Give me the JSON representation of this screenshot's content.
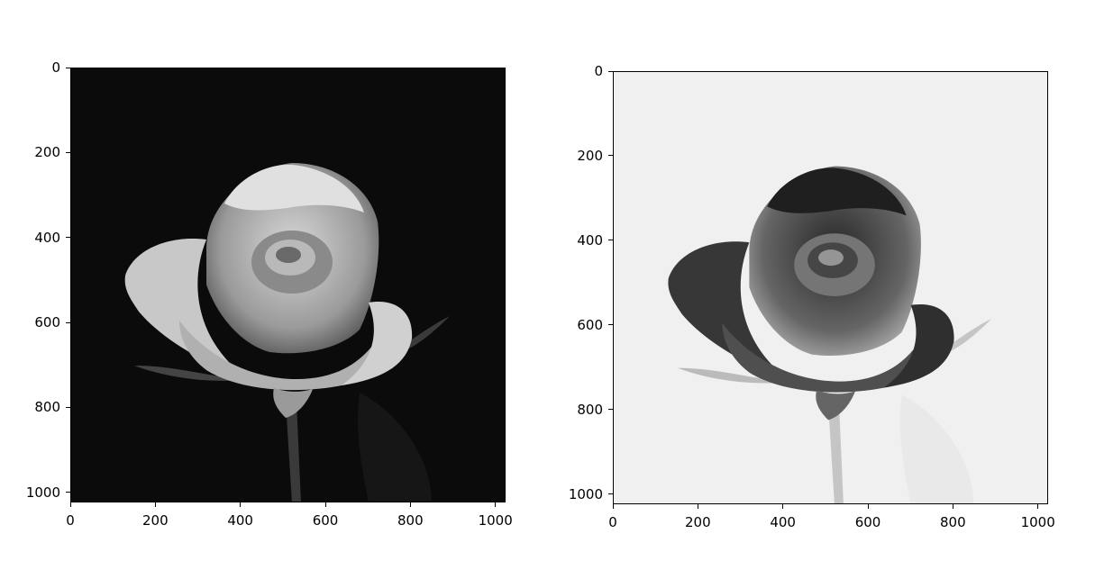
{
  "figure": {
    "panels": [
      {
        "id": "original",
        "image_subject": "grayscale rose on black background",
        "image_style": "grayscale",
        "background_color": "#0b0b0b",
        "petal_light": "#e6e6e6",
        "petal_mid": "#a9a9a9",
        "petal_dark": "#3a3a3a",
        "xticks": [
          "0",
          "200",
          "400",
          "600",
          "800",
          "1000"
        ],
        "yticks": [
          "0",
          "200",
          "400",
          "600",
          "800",
          "1000"
        ],
        "xlim": [
          0,
          1024
        ],
        "ylim": [
          1024,
          0
        ]
      },
      {
        "id": "inverted",
        "image_subject": "inverted grayscale rose on light background",
        "image_style": "inverted grayscale",
        "background_color": "#f0f0f0",
        "petal_light": "#191919",
        "petal_mid": "#565656",
        "petal_dark": "#c5c5c5",
        "xticks": [
          "0",
          "200",
          "400",
          "600",
          "800",
          "1000"
        ],
        "yticks": [
          "0",
          "200",
          "400",
          "600",
          "800",
          "1000"
        ],
        "xlim": [
          0,
          1024
        ],
        "ylim": [
          1024,
          0
        ]
      }
    ]
  }
}
